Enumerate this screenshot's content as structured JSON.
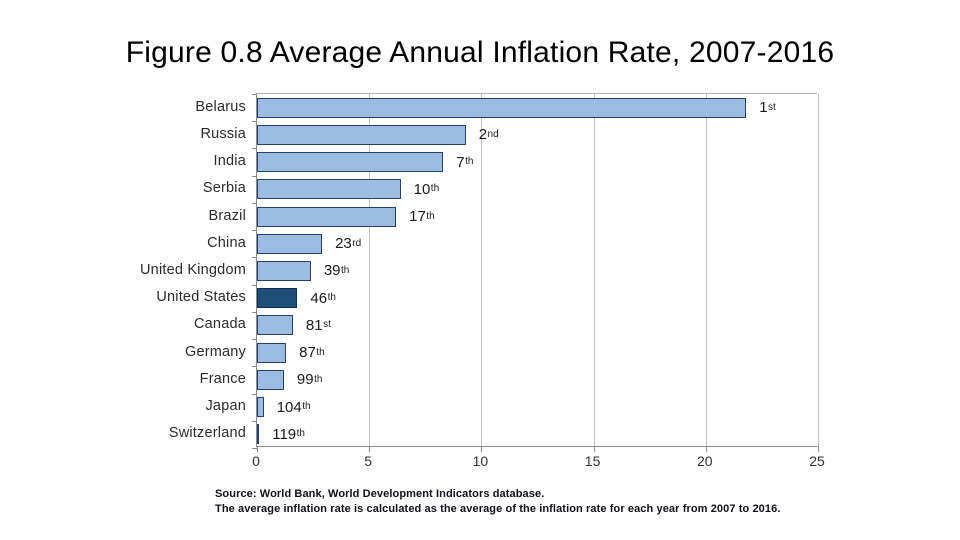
{
  "slide": {
    "title": "Figure 0.8 Average Annual Inflation Rate, 2007-2016",
    "source_line1": "Source: World Bank, World Development Indicators database.",
    "source_line2": "The average inflation rate is calculated as the average of the inflation rate for each year from 2007 to 2016."
  },
  "chart_data": {
    "type": "bar",
    "orientation": "horizontal",
    "title": "Figure 0.8 Average Annual Inflation Rate, 2007-2016",
    "xlabel": "",
    "ylabel": "",
    "categories": [
      "Belarus",
      "Russia",
      "India",
      "Serbia",
      "Brazil",
      "China",
      "United Kingdom",
      "United States",
      "Canada",
      "Germany",
      "France",
      "Japan",
      "Switzerland"
    ],
    "values": [
      21.8,
      9.3,
      8.3,
      6.4,
      6.2,
      2.9,
      2.4,
      1.8,
      1.6,
      1.3,
      1.2,
      0.3,
      0.1
    ],
    "rank_labels": [
      "1st",
      "2nd",
      "7th",
      "10th",
      "17th",
      "23rd",
      "39th",
      "46th",
      "81st",
      "87th",
      "99th",
      "104th",
      "119th"
    ],
    "highlight_index": 7,
    "xlim": [
      0,
      25
    ],
    "x_ticks": [
      0,
      5,
      10,
      15,
      20,
      25
    ],
    "grid": true,
    "legend": "none",
    "colors": {
      "bar_fill": "#9CBCE2",
      "bar_border": "#24406B",
      "highlight_fill": "#1F4E79",
      "highlight_border": "#132E54",
      "gridline": "#C2C2C2",
      "axis": "#8C8C8C",
      "label_text": "#2B2B2B",
      "rank_text": "#1A1A1A"
    }
  }
}
